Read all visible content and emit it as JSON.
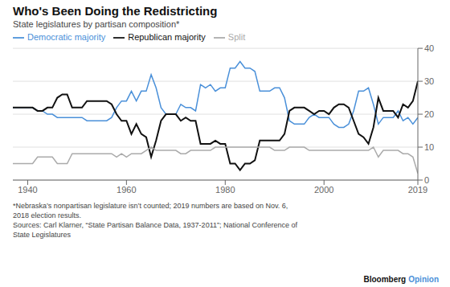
{
  "chart_data": {
    "type": "line",
    "title": "Who's Been Doing the Redistricting",
    "subtitle": "State legislatures by partisan composition*",
    "footnote": "*Nebraska’s nonpartisan legislature isn’t counted; 2019 numbers are based on Nov. 6,\n2018 election results.\nSources: Carl Klarner, “State Partisan Balance Data, 1937-2011”; National Conference of\nState Legislatures",
    "annotations": [
      {
        "text": "Bloomberg",
        "color": "#111111"
      },
      {
        "text": "Opinion",
        "color": "#4a90d9"
      }
    ],
    "x": [
      1937,
      1938,
      1939,
      1940,
      1941,
      1942,
      1943,
      1944,
      1945,
      1946,
      1947,
      1948,
      1949,
      1950,
      1951,
      1952,
      1953,
      1954,
      1955,
      1956,
      1957,
      1958,
      1959,
      1960,
      1961,
      1962,
      1963,
      1964,
      1965,
      1966,
      1967,
      1968,
      1969,
      1970,
      1971,
      1972,
      1973,
      1974,
      1975,
      1976,
      1977,
      1978,
      1979,
      1980,
      1981,
      1982,
      1983,
      1984,
      1985,
      1986,
      1987,
      1988,
      1989,
      1990,
      1991,
      1992,
      1993,
      1994,
      1995,
      1996,
      1997,
      1998,
      1999,
      2000,
      2001,
      2002,
      2003,
      2004,
      2005,
      2006,
      2007,
      2008,
      2009,
      2010,
      2011,
      2012,
      2013,
      2014,
      2015,
      2016,
      2017,
      2018,
      2019
    ],
    "series": [
      {
        "name": "Democratic majority",
        "color": "#4a90d9",
        "values": [
          22,
          22,
          22,
          22,
          22,
          21,
          21,
          20,
          20,
          19,
          19,
          19,
          19,
          19,
          19,
          18,
          18,
          18,
          18,
          18,
          19,
          22,
          24,
          24,
          27,
          24,
          27,
          27,
          32,
          28,
          22,
          20,
          20,
          20,
          23,
          22,
          22,
          21,
          29,
          28,
          29,
          27,
          28,
          28,
          34,
          34,
          36,
          34,
          34,
          33,
          27,
          27,
          27,
          28,
          28,
          25,
          18,
          17,
          17,
          17,
          19,
          20,
          19,
          19,
          19,
          17,
          16,
          16,
          17,
          21,
          27,
          27,
          28,
          23,
          17,
          19,
          19,
          19,
          21,
          18,
          19,
          17,
          19
        ]
      },
      {
        "name": "Republican majority",
        "color": "#111111",
        "values": [
          22,
          22,
          22,
          22,
          22,
          21,
          21,
          22,
          22,
          25,
          26,
          26,
          22,
          22,
          22,
          24,
          24,
          24,
          24,
          24,
          23,
          20,
          18,
          18,
          14,
          17,
          14,
          13,
          7,
          12,
          18,
          20,
          20,
          20,
          18,
          19,
          18,
          18,
          11,
          11,
          11,
          12,
          11,
          11,
          5,
          5,
          3,
          5,
          5,
          6,
          12,
          12,
          12,
          12,
          12,
          14,
          21,
          22,
          22,
          22,
          21,
          20,
          21,
          21,
          20,
          22,
          23,
          23,
          22,
          18,
          14,
          13,
          11,
          16,
          25,
          21,
          21,
          21,
          19,
          23,
          22,
          24,
          30
        ]
      },
      {
        "name": "Split",
        "color": "#aaaaaa",
        "values": [
          5,
          5,
          5,
          5,
          5,
          7,
          7,
          7,
          7,
          5,
          5,
          5,
          8,
          8,
          8,
          8,
          8,
          8,
          8,
          8,
          8,
          7,
          8,
          7,
          8,
          8,
          8,
          9,
          10,
          9,
          9,
          9,
          9,
          9,
          8,
          8,
          9,
          9,
          9,
          9,
          9,
          10,
          10,
          10,
          10,
          10,
          10,
          10,
          10,
          10,
          10,
          10,
          10,
          9,
          9,
          9,
          10,
          10,
          10,
          10,
          9,
          9,
          9,
          9,
          9,
          9,
          9,
          9,
          9,
          9,
          9,
          9,
          9,
          10,
          7,
          9,
          9,
          9,
          9,
          8,
          8,
          7,
          2
        ]
      }
    ],
    "xlim": [
      1937,
      2019
    ],
    "xticks": [
      1940,
      1960,
      1980,
      2000,
      2019
    ],
    "ylim": [
      0,
      40
    ],
    "yticks": [
      0,
      10,
      20,
      30,
      40
    ],
    "grid": true,
    "legend": "upper left"
  }
}
